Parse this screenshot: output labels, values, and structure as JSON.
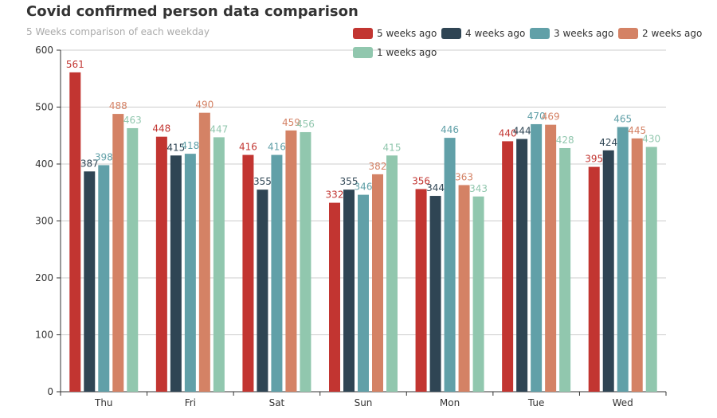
{
  "chart_data": {
    "type": "bar",
    "title": "Covid confirmed person data comparison",
    "subtitle": "5 Weeks comparison of each weekday",
    "categories": [
      "Thu",
      "Fri",
      "Sat",
      "Sun",
      "Mon",
      "Tue",
      "Wed"
    ],
    "series": [
      {
        "name": "5 weeks ago",
        "color": "#c23531",
        "values": [
          561,
          448,
          416,
          332,
          356,
          440,
          395
        ]
      },
      {
        "name": "4 weeks ago",
        "color": "#2f4554",
        "values": [
          387,
          415,
          355,
          355,
          344,
          444,
          424
        ]
      },
      {
        "name": "3 weeks ago",
        "color": "#61a0a8",
        "values": [
          398,
          418,
          416,
          346,
          446,
          470,
          465
        ]
      },
      {
        "name": "2 weeks ago",
        "color": "#d48265",
        "values": [
          488,
          490,
          459,
          382,
          363,
          469,
          445
        ]
      },
      {
        "name": "1 weeks ago",
        "color": "#91c7ae",
        "values": [
          463,
          447,
          456,
          415,
          343,
          428,
          430
        ]
      }
    ],
    "ylim": [
      0,
      600
    ],
    "yticks": [
      0,
      100,
      200,
      300,
      400,
      500,
      600
    ],
    "grid": true,
    "legend": "top-right"
  }
}
